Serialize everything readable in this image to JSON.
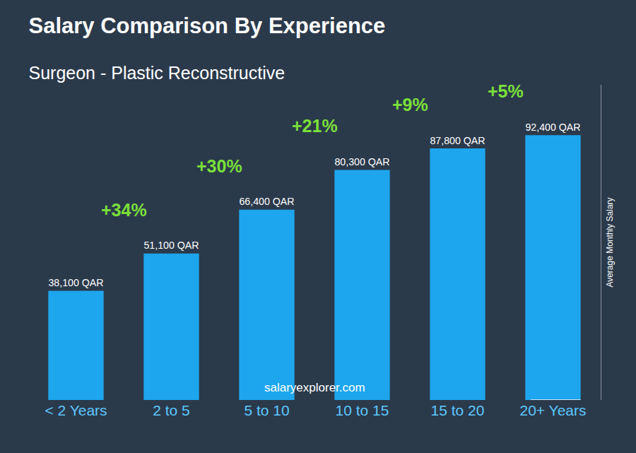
{
  "chart_data": {
    "type": "bar",
    "title": "Salary Comparison By Experience",
    "subtitle": "Surgeon - Plastic Reconstructive",
    "categories": [
      "< 2 Years",
      "2 to 5",
      "5 to 10",
      "10 to 15",
      "15 to 20",
      "20+ Years"
    ],
    "values": [
      38100,
      51100,
      66400,
      80300,
      87800,
      92400
    ],
    "value_labels": [
      "38,100 QAR",
      "51,100 QAR",
      "66,400 QAR",
      "80,300 QAR",
      "87,800 QAR",
      "92,400 QAR"
    ],
    "color": "#1da6ee",
    "ylim": [
      0,
      110000
    ],
    "yticks": [],
    "ylabel": "Average Monthly Salary",
    "data_labels": true,
    "tick_labels": "x",
    "grid": false,
    "annotations": [
      "+34%",
      "+30%",
      "+21%",
      "+9%",
      "+5%"
    ],
    "source": "salaryexplorer.com"
  }
}
